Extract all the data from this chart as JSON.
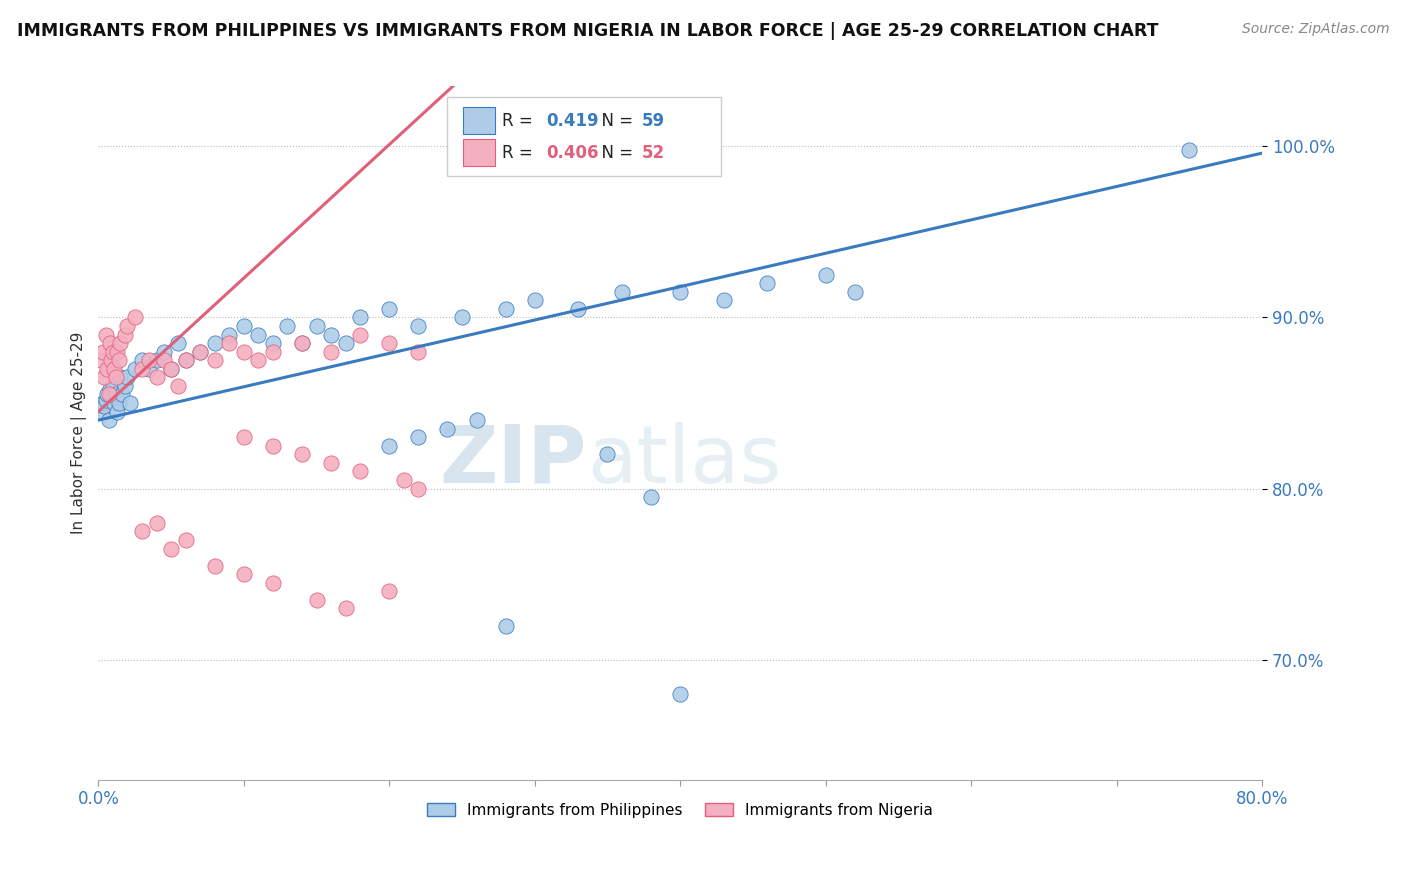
{
  "title": "IMMIGRANTS FROM PHILIPPINES VS IMMIGRANTS FROM NIGERIA IN LABOR FORCE | AGE 25-29 CORRELATION CHART",
  "source": "Source: ZipAtlas.com",
  "ylabel": "In Labor Force | Age 25-29",
  "xlim": [
    0.0,
    80.0
  ],
  "ylim": [
    63.0,
    103.5
  ],
  "yticks": [
    70.0,
    80.0,
    90.0,
    100.0
  ],
  "xticks": [
    0,
    10,
    20,
    30,
    40,
    50,
    60,
    70,
    80
  ],
  "r_philippines": 0.419,
  "n_philippines": 59,
  "r_nigeria": 0.406,
  "n_nigeria": 52,
  "color_philippines": "#aecce8",
  "color_nigeria": "#f4afc0",
  "line_color_philippines": "#3a7abf",
  "line_color_nigeria": "#e0607a",
  "watermark_zip": "ZIP",
  "watermark_atlas": "atlas",
  "watermark_color": "#c8dff0",
  "phil_x": [
    0.2,
    0.3,
    0.4,
    0.5,
    0.6,
    0.7,
    0.8,
    0.9,
    1.0,
    1.1,
    1.2,
    1.3,
    1.4,
    1.5,
    1.6,
    1.8,
    2.0,
    2.2,
    2.5,
    3.0,
    3.5,
    4.0,
    4.5,
    5.0,
    5.5,
    6.0,
    7.0,
    8.0,
    9.0,
    10.0,
    11.0,
    12.0,
    13.0,
    14.0,
    15.0,
    16.0,
    17.0,
    18.0,
    20.0,
    22.0,
    25.0,
    28.0,
    30.0,
    33.0,
    36.0,
    40.0,
    43.0,
    46.0,
    50.0,
    52.0,
    38.0,
    20.0,
    22.0,
    24.0,
    26.0,
    28.0,
    35.0,
    40.0,
    75.0
  ],
  "phil_y": [
    84.5,
    85.0,
    84.8,
    85.2,
    85.5,
    84.0,
    85.8,
    85.5,
    86.0,
    85.0,
    85.5,
    84.5,
    85.0,
    86.5,
    85.5,
    86.0,
    86.5,
    85.0,
    87.0,
    87.5,
    87.0,
    87.5,
    88.0,
    87.0,
    88.5,
    87.5,
    88.0,
    88.5,
    89.0,
    89.5,
    89.0,
    88.5,
    89.5,
    88.5,
    89.5,
    89.0,
    88.5,
    90.0,
    90.5,
    89.5,
    90.0,
    90.5,
    91.0,
    90.5,
    91.5,
    91.5,
    91.0,
    92.0,
    92.5,
    91.5,
    79.5,
    82.5,
    83.0,
    83.5,
    84.0,
    72.0,
    82.0,
    68.0,
    99.8
  ],
  "nig_x": [
    0.2,
    0.3,
    0.4,
    0.5,
    0.6,
    0.7,
    0.8,
    0.9,
    1.0,
    1.1,
    1.2,
    1.3,
    1.4,
    1.5,
    1.8,
    2.0,
    2.5,
    3.0,
    3.5,
    4.0,
    4.5,
    5.0,
    5.5,
    6.0,
    7.0,
    8.0,
    9.0,
    10.0,
    11.0,
    12.0,
    14.0,
    16.0,
    18.0,
    20.0,
    22.0,
    3.0,
    4.0,
    5.0,
    6.0,
    8.0,
    10.0,
    12.0,
    15.0,
    17.0,
    20.0,
    10.0,
    12.0,
    14.0,
    16.0,
    18.0,
    21.0,
    22.0
  ],
  "nig_y": [
    87.5,
    88.0,
    86.5,
    89.0,
    87.0,
    85.5,
    88.5,
    87.5,
    88.0,
    87.0,
    86.5,
    88.0,
    87.5,
    88.5,
    89.0,
    89.5,
    90.0,
    87.0,
    87.5,
    86.5,
    87.5,
    87.0,
    86.0,
    87.5,
    88.0,
    87.5,
    88.5,
    88.0,
    87.5,
    88.0,
    88.5,
    88.0,
    89.0,
    88.5,
    88.0,
    77.5,
    78.0,
    76.5,
    77.0,
    75.5,
    75.0,
    74.5,
    73.5,
    73.0,
    74.0,
    83.0,
    82.5,
    82.0,
    81.5,
    81.0,
    80.5,
    80.0
  ]
}
